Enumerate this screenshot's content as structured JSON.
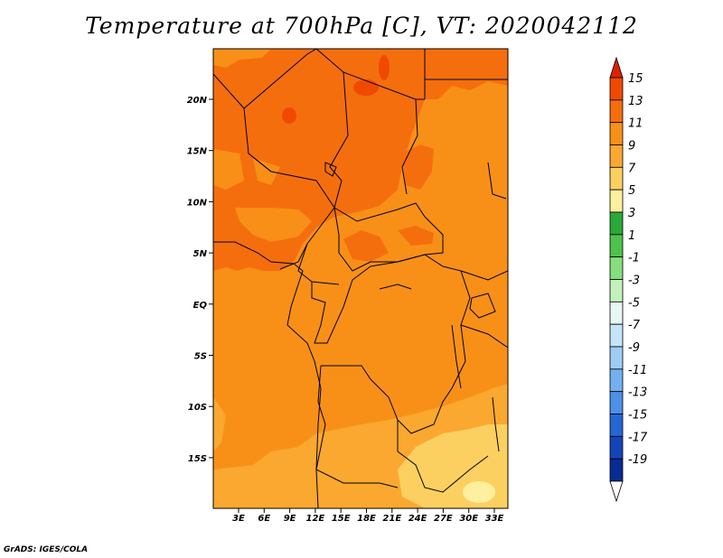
{
  "title": "Temperature at 700hPa [C], VT: 2020042112",
  "credit": "GrADS: IGES/COLA",
  "map": {
    "lon_labels": [
      "3E",
      "6E",
      "9E",
      "12E",
      "15E",
      "18E",
      "21E",
      "24E",
      "27E",
      "30E",
      "33E"
    ],
    "lat_labels": [
      "20N",
      "15N",
      "10N",
      "5N",
      "EQ",
      "5S",
      "10S",
      "15S"
    ]
  },
  "colorbar": {
    "labels": [
      "15",
      "13",
      "11",
      "9",
      "7",
      "5",
      "3",
      "1",
      "-1",
      "-3",
      "-5",
      "-7",
      "-9",
      "-11",
      "-13",
      "-15",
      "-17",
      "-19"
    ],
    "colors": [
      "#dd2200",
      "#f04a00",
      "#f56e0e",
      "#f89018",
      "#faa830",
      "#fcd060",
      "#fef09e",
      "#2aa838",
      "#4ec24e",
      "#86de7c",
      "#c4f0bc",
      "#e8f6f4",
      "#c4e4f8",
      "#9ecdf4",
      "#74b0ee",
      "#4c90e8",
      "#2466d6",
      "#1445b8",
      "#0a2a94",
      "#ffffff"
    ]
  },
  "legend_colors": {
    "dark_orange": "#f56e0e",
    "orange": "#f89018",
    "light_orange": "#faa830",
    "yellow": "#fcd060"
  }
}
